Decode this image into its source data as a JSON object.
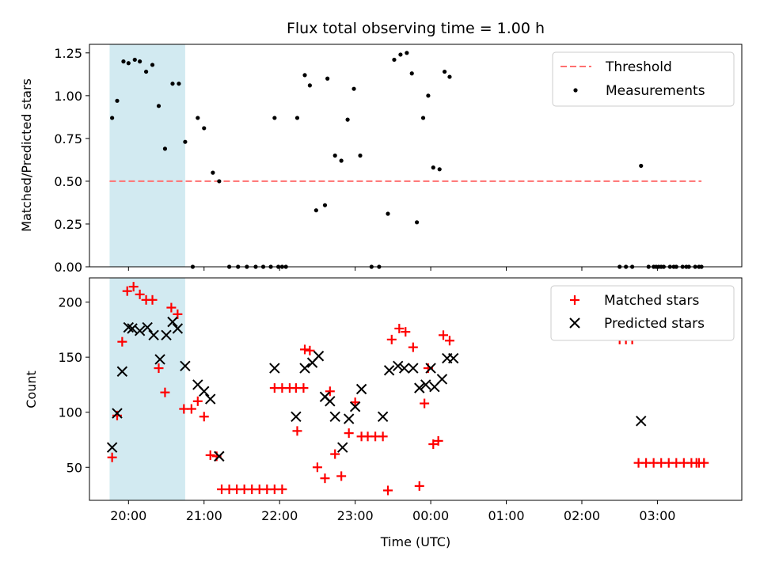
{
  "chart_data": [
    {
      "type": "scatter",
      "title": "Flux total observing time = 1.00 h",
      "xlabel": "",
      "ylabel": "Matched/Predicted stars",
      "ylim": [
        0,
        1.3
      ],
      "yticks": [
        "0.00",
        "0.25",
        "0.50",
        "0.75",
        "1.00",
        "1.25"
      ],
      "legend_position": "top-right",
      "highlight_span": [
        "19:45",
        "20:45"
      ],
      "highlight_color": "#add8e6",
      "threshold": {
        "name": "Threshold",
        "value": 0.5,
        "x_range": [
          "19:45",
          "03:35"
        ],
        "color": "#ff7070"
      },
      "series": [
        {
          "name": "Measurements",
          "color": "#000000",
          "points": [
            [
              "19:47",
              0.87
            ],
            [
              "19:51",
              0.97
            ],
            [
              "19:56",
              1.2
            ],
            [
              "20:00",
              1.19
            ],
            [
              "20:05",
              1.21
            ],
            [
              "20:09",
              1.2
            ],
            [
              "20:14",
              1.14
            ],
            [
              "20:19",
              1.18
            ],
            [
              "20:24",
              0.94
            ],
            [
              "20:29",
              0.69
            ],
            [
              "20:35",
              1.07
            ],
            [
              "20:40",
              1.07
            ],
            [
              "20:45",
              0.73
            ],
            [
              "20:51",
              0.0
            ],
            [
              "20:55",
              0.87
            ],
            [
              "21:00",
              0.81
            ],
            [
              "21:07",
              0.55
            ],
            [
              "21:12",
              0.5
            ],
            [
              "21:20",
              0.0
            ],
            [
              "21:27",
              0.0
            ],
            [
              "21:34",
              0.0
            ],
            [
              "21:41",
              0.0
            ],
            [
              "21:47",
              0.0
            ],
            [
              "21:53",
              0.0
            ],
            [
              "21:59",
              0.0
            ],
            [
              "22:05",
              0.0
            ],
            [
              "22:02",
              0.0
            ],
            [
              "21:56",
              0.87
            ],
            [
              "22:14",
              0.87
            ],
            [
              "22:20",
              1.12
            ],
            [
              "22:24",
              1.06
            ],
            [
              "22:29",
              0.33
            ],
            [
              "22:36",
              0.36
            ],
            [
              "22:38",
              1.1
            ],
            [
              "22:44",
              0.65
            ],
            [
              "22:49",
              0.62
            ],
            [
              "22:54",
              0.86
            ],
            [
              "22:59",
              1.04
            ],
            [
              "23:04",
              0.65
            ],
            [
              "23:13",
              0.0
            ],
            [
              "23:19",
              0.0
            ],
            [
              "23:26",
              0.31
            ],
            [
              "23:31",
              1.21
            ],
            [
              "23:36",
              1.24
            ],
            [
              "23:41",
              1.25
            ],
            [
              "23:45",
              1.13
            ],
            [
              "23:49",
              0.26
            ],
            [
              "23:54",
              0.87
            ],
            [
              "23:58",
              1.0
            ],
            [
              "00:02",
              0.58
            ],
            [
              "00:07",
              0.57
            ],
            [
              "00:11",
              1.14
            ],
            [
              "00:15",
              1.11
            ],
            [
              "02:30",
              0.0
            ],
            [
              "02:35",
              0.0
            ],
            [
              "02:40",
              0.0
            ],
            [
              "02:47",
              0.59
            ],
            [
              "02:53",
              0.0
            ],
            [
              "02:59",
              0.0
            ],
            [
              "03:05",
              0.0
            ],
            [
              "03:10",
              0.0
            ],
            [
              "03:15",
              0.0
            ],
            [
              "03:20",
              0.0
            ],
            [
              "03:25",
              0.0
            ],
            [
              "03:30",
              0.0
            ],
            [
              "03:35",
              0.0
            ],
            [
              "02:57",
              0.0
            ],
            [
              "03:01",
              0.0
            ],
            [
              "03:03",
              0.0
            ],
            [
              "03:13",
              0.0
            ],
            [
              "03:23",
              0.0
            ],
            [
              "03:33",
              0.0
            ]
          ]
        }
      ]
    },
    {
      "type": "scatter",
      "title": "",
      "xlabel": "Time (UTC)",
      "ylabel": "Count",
      "ylim": [
        20,
        222
      ],
      "yticks": [
        "50",
        "100",
        "150",
        "200"
      ],
      "xticks": [
        "20:00",
        "21:00",
        "22:00",
        "23:00",
        "00:00",
        "01:00",
        "02:00",
        "03:00"
      ],
      "legend_position": "top-right",
      "highlight_span": [
        "19:45",
        "20:45"
      ],
      "highlight_color": "#add8e6",
      "series": [
        {
          "name": "Matched stars",
          "marker": "+",
          "color": "#ff0000",
          "points": [
            [
              "19:47",
              59
            ],
            [
              "19:51",
              97
            ],
            [
              "19:55",
              164
            ],
            [
              "19:59",
              210
            ],
            [
              "20:04",
              214
            ],
            [
              "20:09",
              207
            ],
            [
              "20:14",
              202
            ],
            [
              "20:19",
              202
            ],
            [
              "20:24",
              140
            ],
            [
              "20:29",
              118
            ],
            [
              "20:34",
              195
            ],
            [
              "20:39",
              189
            ],
            [
              "20:44",
              103
            ],
            [
              "20:50",
              103
            ],
            [
              "20:55",
              110
            ],
            [
              "21:00",
              96
            ],
            [
              "21:05",
              61
            ],
            [
              "21:10",
              60
            ],
            [
              "21:14",
              30
            ],
            [
              "21:20",
              30
            ],
            [
              "21:26",
              30
            ],
            [
              "21:32",
              30
            ],
            [
              "21:38",
              30
            ],
            [
              "21:44",
              30
            ],
            [
              "21:50",
              30
            ],
            [
              "21:56",
              30
            ],
            [
              "22:02",
              30
            ],
            [
              "21:56",
              122
            ],
            [
              "22:02",
              122
            ],
            [
              "22:08",
              122
            ],
            [
              "22:13",
              122
            ],
            [
              "22:19",
              122
            ],
            [
              "22:14",
              83
            ],
            [
              "22:20",
              157
            ],
            [
              "22:24",
              156
            ],
            [
              "22:30",
              50
            ],
            [
              "22:36",
              40
            ],
            [
              "22:40",
              119
            ],
            [
              "22:44",
              62
            ],
            [
              "22:49",
              42
            ],
            [
              "22:55",
              81
            ],
            [
              "23:00",
              109
            ],
            [
              "23:05",
              78
            ],
            [
              "23:10",
              78
            ],
            [
              "23:16",
              78
            ],
            [
              "23:22",
              78
            ],
            [
              "23:26",
              29
            ],
            [
              "23:29",
              166
            ],
            [
              "23:35",
              176
            ],
            [
              "23:40",
              173
            ],
            [
              "23:46",
              159
            ],
            [
              "23:51",
              33
            ],
            [
              "23:55",
              108
            ],
            [
              "23:58",
              140
            ],
            [
              "00:02",
              71
            ],
            [
              "00:06",
              74
            ],
            [
              "00:10",
              170
            ],
            [
              "00:15",
              165
            ],
            [
              "02:30",
              166
            ],
            [
              "02:35",
              166
            ],
            [
              "02:40",
              166
            ],
            [
              "02:45",
              54
            ],
            [
              "02:51",
              54
            ],
            [
              "02:57",
              54
            ],
            [
              "03:03",
              54
            ],
            [
              "03:09",
              54
            ],
            [
              "03:15",
              54
            ],
            [
              "03:21",
              54
            ],
            [
              "03:27",
              54
            ],
            [
              "03:33",
              54
            ],
            [
              "03:37",
              54
            ],
            [
              "03:31",
              54
            ]
          ]
        },
        {
          "name": "Predicted stars",
          "marker": "x",
          "color": "#000000",
          "points": [
            [
              "19:47",
              68
            ],
            [
              "19:51",
              99
            ],
            [
              "19:55",
              137
            ],
            [
              "20:00",
              177
            ],
            [
              "20:03",
              176
            ],
            [
              "20:09",
              174
            ],
            [
              "20:15",
              177
            ],
            [
              "20:20",
              170
            ],
            [
              "20:25",
              148
            ],
            [
              "20:30",
              170
            ],
            [
              "20:35",
              182
            ],
            [
              "20:39",
              176
            ],
            [
              "20:45",
              142
            ],
            [
              "20:55",
              125
            ],
            [
              "21:00",
              119
            ],
            [
              "21:05",
              112
            ],
            [
              "21:12",
              60
            ],
            [
              "21:56",
              140
            ],
            [
              "22:13",
              96
            ],
            [
              "22:20",
              140
            ],
            [
              "22:26",
              145
            ],
            [
              "22:31",
              151
            ],
            [
              "22:36",
              114
            ],
            [
              "22:40",
              110
            ],
            [
              "22:44",
              96
            ],
            [
              "22:50",
              68
            ],
            [
              "22:55",
              94
            ],
            [
              "23:00",
              105
            ],
            [
              "23:05",
              121
            ],
            [
              "23:22",
              96
            ],
            [
              "23:27",
              138
            ],
            [
              "23:34",
              142
            ],
            [
              "23:39",
              140
            ],
            [
              "23:46",
              140
            ],
            [
              "23:51",
              122
            ],
            [
              "23:56",
              125
            ],
            [
              "00:00",
              140
            ],
            [
              "00:03",
              123
            ],
            [
              "00:09",
              130
            ],
            [
              "00:13",
              149
            ],
            [
              "00:18",
              149
            ],
            [
              "02:47",
              92
            ]
          ]
        }
      ]
    }
  ]
}
